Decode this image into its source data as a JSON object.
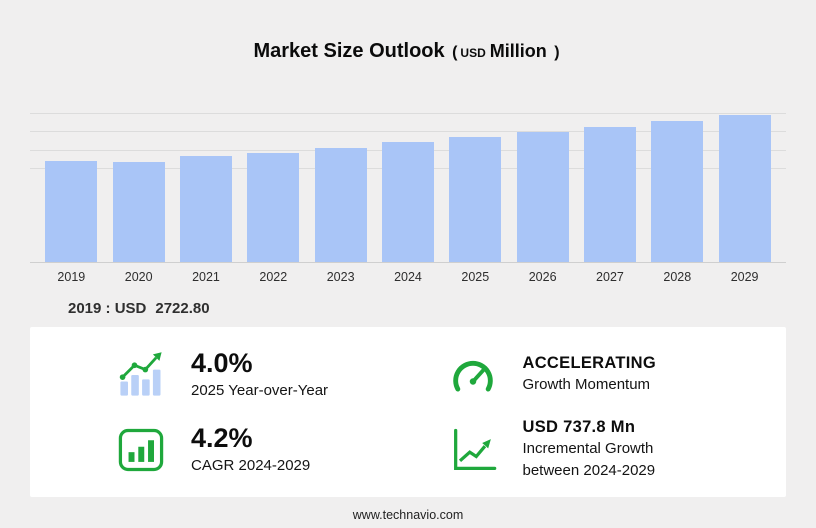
{
  "title": {
    "main": "Market Size Outlook",
    "unit_open": "(",
    "unit_currency": "USD",
    "unit_scale": "Million",
    "unit_close": ")"
  },
  "chart_data": {
    "type": "bar",
    "title": "Market Size Outlook (USD Million)",
    "categories": [
      "2019",
      "2020",
      "2021",
      "2022",
      "2023",
      "2024",
      "2025",
      "2026",
      "2027",
      "2028",
      "2029"
    ],
    "values": [
      2722.8,
      2695,
      2855,
      2935,
      3075,
      3230,
      3359,
      3495,
      3635,
      3795,
      3968
    ],
    "ylim": [
      0,
      4100
    ],
    "gridline_values": [
      2500,
      3000,
      3500,
      4000
    ],
    "legend": "none",
    "grid": "horizontal"
  },
  "annotation_2019": {
    "label": "2019 : USD",
    "value": "2722.80"
  },
  "stats": {
    "yoy": {
      "value": "4.0%",
      "label": "2025 Year-over-Year"
    },
    "momentum": {
      "value": "ACCELERATING",
      "label": "Growth Momentum"
    },
    "cagr": {
      "value": "4.2%",
      "label": "CAGR 2024-2029"
    },
    "incremental": {
      "value": "USD 737.8 Mn",
      "label": "Incremental Growth",
      "label2": "between 2024-2029"
    }
  },
  "footer": {
    "url": "www.technavio.com"
  },
  "colors": {
    "green": "#1fa83c",
    "bar": "#a9c5f7",
    "bar_icon": "#b9d0f7",
    "background": "#f0efef"
  }
}
